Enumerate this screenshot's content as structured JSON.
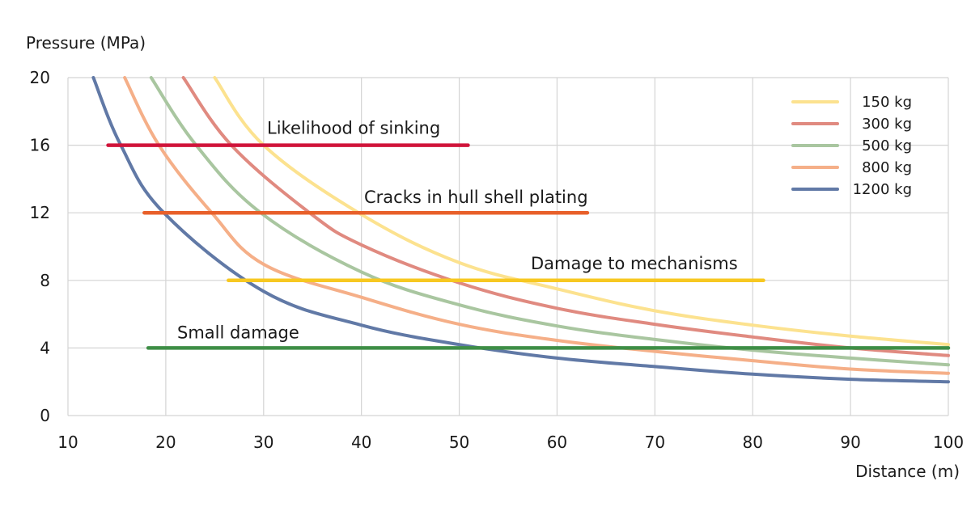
{
  "chart_data": {
    "type": "line",
    "title": "",
    "xlabel": "Distance (m)",
    "ylabel": "Pressure (MPa)",
    "xlim": [
      10,
      100
    ],
    "ylim": [
      0,
      20
    ],
    "xticks": [
      "10",
      "20",
      "30",
      "40",
      "50",
      "60",
      "70",
      "80",
      "90",
      "100"
    ],
    "yticks": [
      "0",
      "4",
      "8",
      "12",
      "16",
      "20"
    ],
    "grid": true,
    "legend_position": "top-right",
    "series": [
      {
        "name": "150 kg",
        "color": "#FCE28F",
        "x": [
          25,
          30,
          40,
          50,
          60,
          70,
          80,
          90,
          100
        ],
        "y": [
          20,
          16,
          11.9,
          9.05,
          7.5,
          6.2,
          5.35,
          4.7,
          4.2
        ]
      },
      {
        "name": "300 kg",
        "color": "#E08A80",
        "x": [
          21.8,
          26.7,
          34.7,
          40,
          50,
          60,
          70,
          80,
          90,
          100
        ],
        "y": [
          20,
          16,
          12,
          10.1,
          7.85,
          6.35,
          5.4,
          4.65,
          4.0,
          3.55
        ]
      },
      {
        "name": "500 kg",
        "color": "#A9C6A0",
        "x": [
          18.5,
          23.1,
          29.7,
          40,
          50,
          60,
          70,
          80,
          90,
          100
        ],
        "y": [
          20,
          16,
          12,
          8.5,
          6.55,
          5.3,
          4.5,
          3.87,
          3.4,
          3.0
        ]
      },
      {
        "name": "800 kg",
        "color": "#F5AF88",
        "x": [
          15.8,
          19.3,
          24.7,
          30,
          40,
          50,
          60,
          70,
          80,
          90,
          100
        ],
        "y": [
          20,
          16,
          12,
          8.95,
          7.0,
          5.4,
          4.45,
          3.8,
          3.25,
          2.75,
          2.5
        ]
      },
      {
        "name": "1200 kg",
        "color": "#6179A6",
        "x": [
          12.6,
          15.4,
          19.8,
          30,
          40,
          50,
          60,
          70,
          80,
          90,
          100
        ],
        "y": [
          20,
          16,
          12,
          7.35,
          5.35,
          4.2,
          3.4,
          2.9,
          2.45,
          2.15,
          2.0
        ]
      }
    ],
    "thresholds": [
      {
        "label": "Likelihood of sinking",
        "value": 16,
        "x_start": 14.1,
        "x_end": 50.9,
        "color": "#D0143A"
      },
      {
        "label": "Cracks in hull shell plating",
        "value": 12,
        "x_start": 17.8,
        "x_end": 63.1,
        "color": "#E8602A"
      },
      {
        "label": "Damage to mechanisms",
        "value": 8,
        "x_start": 26.4,
        "x_end": 81.1,
        "color": "#F7C821"
      },
      {
        "label": "Small damage",
        "value": 4,
        "x_start": 18.2,
        "x_end": 100,
        "color": "#3E8E46"
      }
    ]
  }
}
